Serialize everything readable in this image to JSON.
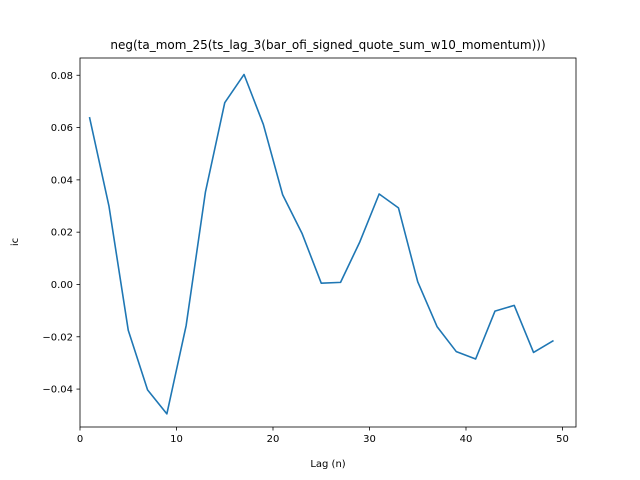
{
  "chart_data": {
    "type": "line",
    "title": "neg(ta_mom_25(ts_lag_3(bar_ofi_signed_quote_sum_w10_momentum)))",
    "xlabel": "Lag (n)",
    "ylabel": "ic",
    "xlim": [
      0.0,
      51.4
    ],
    "ylim": [
      -0.0545,
      0.0866
    ],
    "x_ticks": [
      0,
      10,
      20,
      30,
      40,
      50
    ],
    "y_ticks": [
      -0.04,
      -0.02,
      0.0,
      0.02,
      0.04,
      0.06,
      0.08
    ],
    "x_tick_labels": [
      "0",
      "10",
      "20",
      "30",
      "40",
      "50"
    ],
    "y_tick_labels": [
      "−0.04",
      "−0.02",
      "0.00",
      "0.02",
      "0.04",
      "0.06",
      "0.08"
    ],
    "grid": false,
    "line_color": "#1f77b4",
    "series": [
      {
        "x": [
          1,
          3,
          5,
          7,
          9,
          11,
          13,
          15,
          17,
          19,
          21,
          23,
          25,
          27,
          29,
          31,
          33,
          35,
          37,
          39,
          41,
          43,
          45,
          47,
          49
        ],
        "values": [
          0.0637,
          0.03,
          -0.0175,
          -0.0403,
          -0.0495,
          -0.0157,
          0.0354,
          0.0695,
          0.0803,
          0.0612,
          0.0343,
          0.0196,
          0.0005,
          0.0008,
          0.0163,
          0.0346,
          0.0293,
          0.001,
          -0.0161,
          -0.0257,
          -0.0285,
          -0.0102,
          -0.008,
          -0.026,
          -0.0216
        ]
      }
    ]
  }
}
